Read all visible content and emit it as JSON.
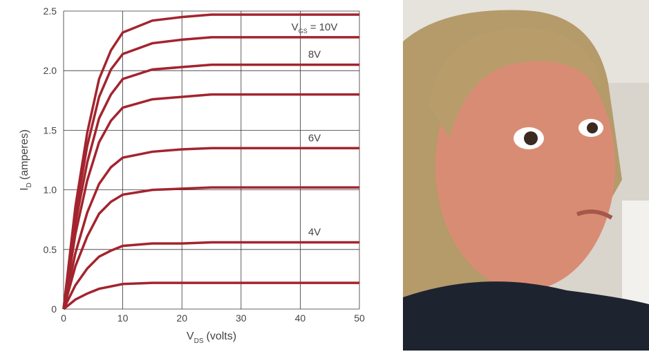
{
  "chart_data": {
    "type": "line",
    "x_label": {
      "main": "V",
      "sub": "DS",
      "rest": "(volts)"
    },
    "y_label": {
      "main": "I",
      "sub": "D",
      "rest": "(amperes)"
    },
    "x": [
      0,
      2,
      4,
      6,
      8,
      10,
      15,
      20,
      25,
      30,
      35,
      40,
      45,
      50
    ],
    "xlim": [
      0,
      50
    ],
    "xticks": [
      0,
      10,
      20,
      30,
      40,
      50
    ],
    "ylim": [
      0,
      2.5
    ],
    "yticks": [
      0,
      0.5,
      {
        "value": 1,
        "label": "1.0"
      },
      1.5,
      {
        "value": 2,
        "label": "2.0"
      },
      2.5
    ],
    "grid": true,
    "series": [
      {
        "color": "#a3242e",
        "values": [
          0,
          0.86,
          1.48,
          1.93,
          2.17,
          2.32,
          2.42,
          2.45,
          2.47,
          2.47,
          2.47,
          2.47,
          2.47,
          2.47
        ]
      },
      {
        "name": "V",
        "name_sub": "GS",
        "name_rest": "= 10V",
        "color": "#a3242e",
        "values": [
          0,
          0.8,
          1.37,
          1.78,
          2.01,
          2.14,
          2.23,
          2.26,
          2.28,
          2.28,
          2.28,
          2.28,
          2.28,
          2.28
        ]
      },
      {
        "name": "8V",
        "color": "#a3242e",
        "values": [
          0,
          0.72,
          1.23,
          1.6,
          1.8,
          1.93,
          2.01,
          2.03,
          2.05,
          2.05,
          2.05,
          2.05,
          2.05,
          2.05
        ]
      },
      {
        "color": "#a3242e",
        "values": [
          0,
          0.63,
          1.08,
          1.4,
          1.58,
          1.69,
          1.76,
          1.78,
          1.8,
          1.8,
          1.8,
          1.8,
          1.8,
          1.8
        ]
      },
      {
        "name": "6V",
        "color": "#a3242e",
        "values": [
          0,
          0.47,
          0.81,
          1.05,
          1.19,
          1.27,
          1.32,
          1.34,
          1.35,
          1.35,
          1.35,
          1.35,
          1.35,
          1.35
        ]
      },
      {
        "color": "#a3242e",
        "values": [
          0,
          0.36,
          0.61,
          0.8,
          0.9,
          0.96,
          1.0,
          1.01,
          1.02,
          1.02,
          1.02,
          1.02,
          1.02,
          1.02
        ]
      },
      {
        "name": "4V",
        "color": "#a3242e",
        "values": [
          0,
          0.2,
          0.34,
          0.44,
          0.49,
          0.53,
          0.55,
          0.55,
          0.56,
          0.56,
          0.56,
          0.56,
          0.56,
          0.56
        ]
      },
      {
        "color": "#a3242e",
        "values": [
          0,
          0.08,
          0.13,
          0.17,
          0.19,
          0.21,
          0.22,
          0.22,
          0.22,
          0.22,
          0.22,
          0.22,
          0.22,
          0.22
        ]
      }
    ]
  }
}
